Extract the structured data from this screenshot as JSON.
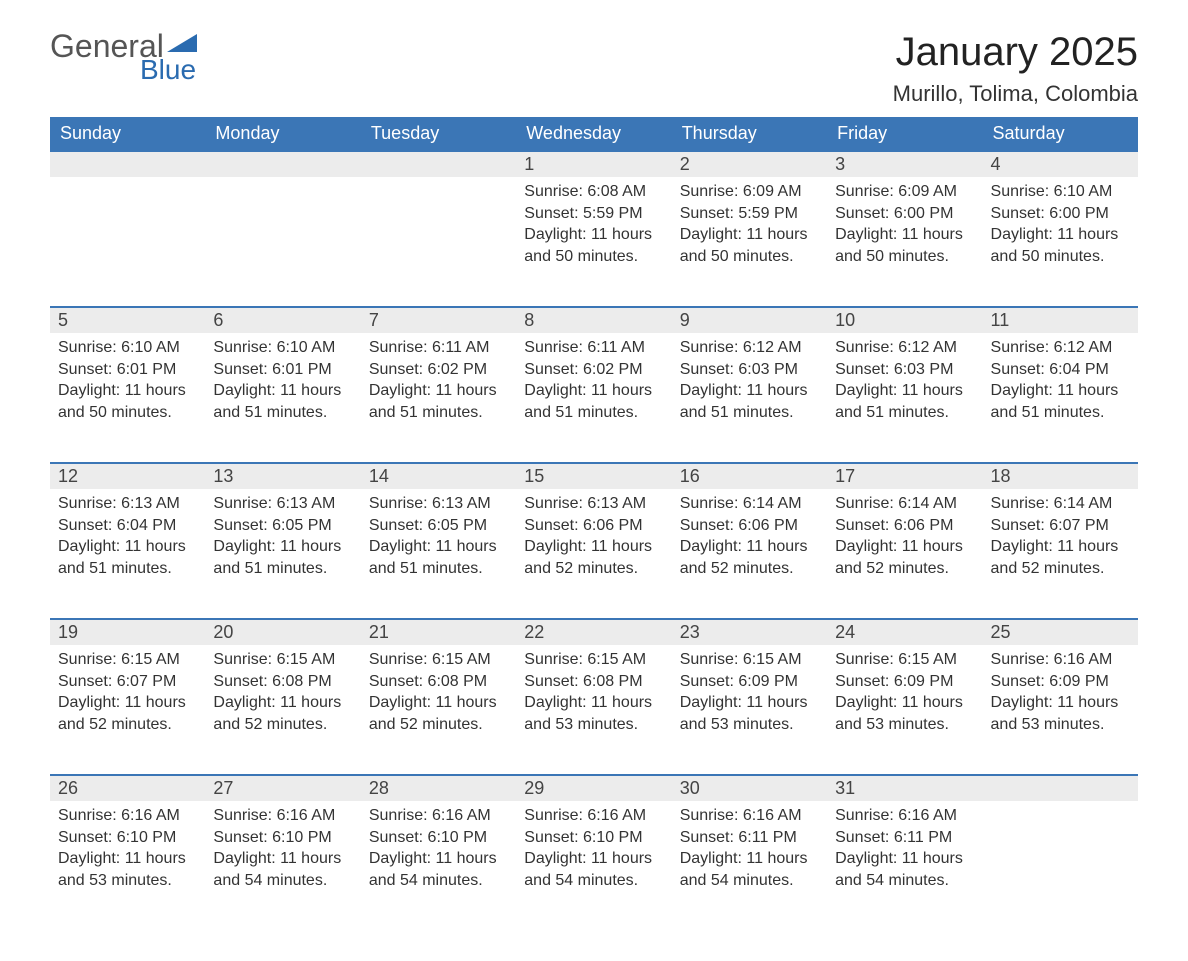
{
  "logo": {
    "line1": "General",
    "line2": "Blue"
  },
  "title": "January 2025",
  "location": "Murillo, Tolima, Colombia",
  "colors": {
    "header_bg": "#3b76b6",
    "header_text": "#ffffff",
    "daynum_bg": "#ececec",
    "daynum_border": "#3b76b6",
    "body_text": "#333333",
    "logo_gray": "#555555",
    "logo_blue": "#2a6bb0"
  },
  "daysOfWeek": [
    "Sunday",
    "Monday",
    "Tuesday",
    "Wednesday",
    "Thursday",
    "Friday",
    "Saturday"
  ],
  "weeks": [
    [
      null,
      null,
      null,
      {
        "n": "1",
        "sr": "6:08 AM",
        "ss": "5:59 PM",
        "dl": "11 hours and 50 minutes."
      },
      {
        "n": "2",
        "sr": "6:09 AM",
        "ss": "5:59 PM",
        "dl": "11 hours and 50 minutes."
      },
      {
        "n": "3",
        "sr": "6:09 AM",
        "ss": "6:00 PM",
        "dl": "11 hours and 50 minutes."
      },
      {
        "n": "4",
        "sr": "6:10 AM",
        "ss": "6:00 PM",
        "dl": "11 hours and 50 minutes."
      }
    ],
    [
      {
        "n": "5",
        "sr": "6:10 AM",
        "ss": "6:01 PM",
        "dl": "11 hours and 50 minutes."
      },
      {
        "n": "6",
        "sr": "6:10 AM",
        "ss": "6:01 PM",
        "dl": "11 hours and 51 minutes."
      },
      {
        "n": "7",
        "sr": "6:11 AM",
        "ss": "6:02 PM",
        "dl": "11 hours and 51 minutes."
      },
      {
        "n": "8",
        "sr": "6:11 AM",
        "ss": "6:02 PM",
        "dl": "11 hours and 51 minutes."
      },
      {
        "n": "9",
        "sr": "6:12 AM",
        "ss": "6:03 PM",
        "dl": "11 hours and 51 minutes."
      },
      {
        "n": "10",
        "sr": "6:12 AM",
        "ss": "6:03 PM",
        "dl": "11 hours and 51 minutes."
      },
      {
        "n": "11",
        "sr": "6:12 AM",
        "ss": "6:04 PM",
        "dl": "11 hours and 51 minutes."
      }
    ],
    [
      {
        "n": "12",
        "sr": "6:13 AM",
        "ss": "6:04 PM",
        "dl": "11 hours and 51 minutes."
      },
      {
        "n": "13",
        "sr": "6:13 AM",
        "ss": "6:05 PM",
        "dl": "11 hours and 51 minutes."
      },
      {
        "n": "14",
        "sr": "6:13 AM",
        "ss": "6:05 PM",
        "dl": "11 hours and 51 minutes."
      },
      {
        "n": "15",
        "sr": "6:13 AM",
        "ss": "6:06 PM",
        "dl": "11 hours and 52 minutes."
      },
      {
        "n": "16",
        "sr": "6:14 AM",
        "ss": "6:06 PM",
        "dl": "11 hours and 52 minutes."
      },
      {
        "n": "17",
        "sr": "6:14 AM",
        "ss": "6:06 PM",
        "dl": "11 hours and 52 minutes."
      },
      {
        "n": "18",
        "sr": "6:14 AM",
        "ss": "6:07 PM",
        "dl": "11 hours and 52 minutes."
      }
    ],
    [
      {
        "n": "19",
        "sr": "6:15 AM",
        "ss": "6:07 PM",
        "dl": "11 hours and 52 minutes."
      },
      {
        "n": "20",
        "sr": "6:15 AM",
        "ss": "6:08 PM",
        "dl": "11 hours and 52 minutes."
      },
      {
        "n": "21",
        "sr": "6:15 AM",
        "ss": "6:08 PM",
        "dl": "11 hours and 52 minutes."
      },
      {
        "n": "22",
        "sr": "6:15 AM",
        "ss": "6:08 PM",
        "dl": "11 hours and 53 minutes."
      },
      {
        "n": "23",
        "sr": "6:15 AM",
        "ss": "6:09 PM",
        "dl": "11 hours and 53 minutes."
      },
      {
        "n": "24",
        "sr": "6:15 AM",
        "ss": "6:09 PM",
        "dl": "11 hours and 53 minutes."
      },
      {
        "n": "25",
        "sr": "6:16 AM",
        "ss": "6:09 PM",
        "dl": "11 hours and 53 minutes."
      }
    ],
    [
      {
        "n": "26",
        "sr": "6:16 AM",
        "ss": "6:10 PM",
        "dl": "11 hours and 53 minutes."
      },
      {
        "n": "27",
        "sr": "6:16 AM",
        "ss": "6:10 PM",
        "dl": "11 hours and 54 minutes."
      },
      {
        "n": "28",
        "sr": "6:16 AM",
        "ss": "6:10 PM",
        "dl": "11 hours and 54 minutes."
      },
      {
        "n": "29",
        "sr": "6:16 AM",
        "ss": "6:10 PM",
        "dl": "11 hours and 54 minutes."
      },
      {
        "n": "30",
        "sr": "6:16 AM",
        "ss": "6:11 PM",
        "dl": "11 hours and 54 minutes."
      },
      {
        "n": "31",
        "sr": "6:16 AM",
        "ss": "6:11 PM",
        "dl": "11 hours and 54 minutes."
      },
      null
    ]
  ],
  "labels": {
    "sunrise": "Sunrise: ",
    "sunset": "Sunset: ",
    "daylight": "Daylight: "
  }
}
